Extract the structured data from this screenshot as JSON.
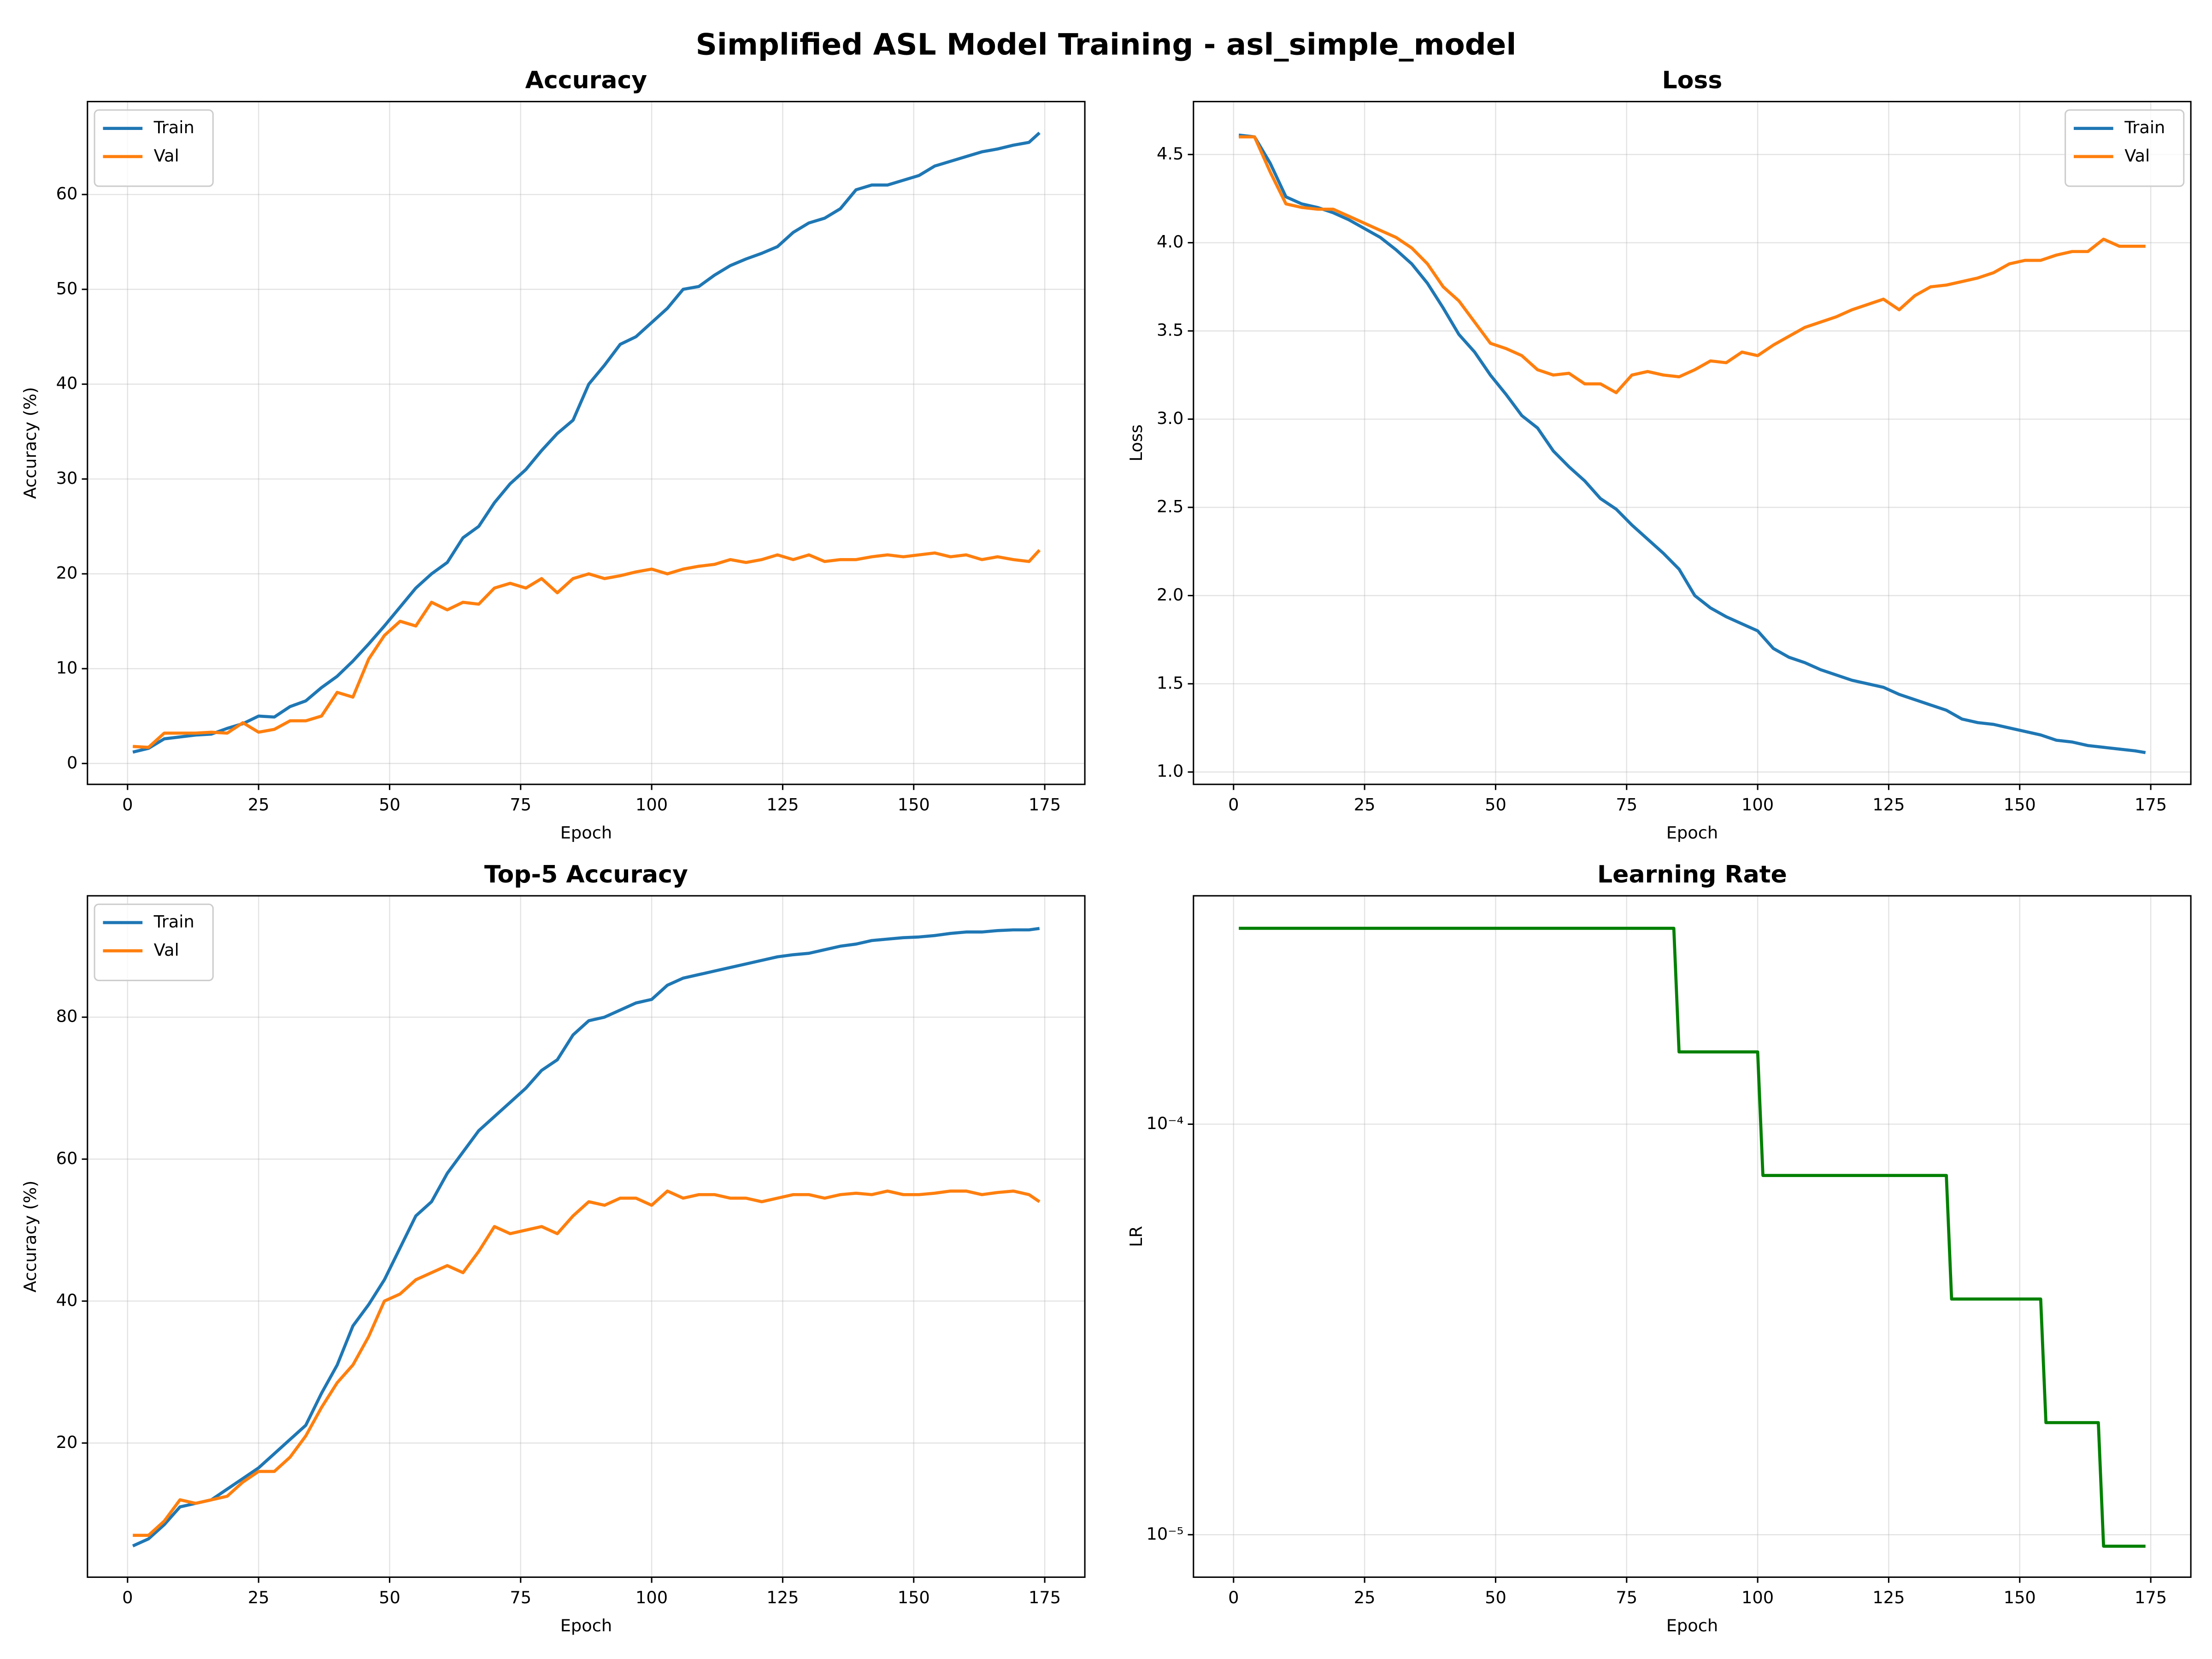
{
  "title": "Simplified ASL Model Training - asl_simple_model",
  "chart_data": [
    {
      "type": "line",
      "title": "Accuracy",
      "x_label": "Epoch",
      "y_label": "Accuracy (%)",
      "x": [
        1,
        4,
        7,
        10,
        13,
        16,
        19,
        22,
        25,
        28,
        31,
        34,
        37,
        40,
        43,
        46,
        49,
        52,
        55,
        58,
        61,
        64,
        67,
        70,
        73,
        76,
        79,
        82,
        85,
        88,
        91,
        94,
        97,
        100,
        103,
        106,
        109,
        112,
        115,
        118,
        121,
        124,
        127,
        130,
        133,
        136,
        139,
        142,
        145,
        148,
        151,
        154,
        157,
        160,
        163,
        166,
        169,
        172,
        174
      ],
      "series": [
        {
          "name": "Train",
          "color": "#1f77b4",
          "values": [
            1.2,
            1.6,
            2.6,
            2.8,
            3.0,
            3.1,
            3.7,
            4.2,
            5.0,
            4.9,
            6.0,
            6.6,
            8.0,
            9.2,
            10.8,
            12.6,
            14.5,
            16.5,
            18.5,
            20.0,
            21.2,
            23.8,
            25.0,
            27.5,
            29.5,
            31.0,
            33.0,
            34.8,
            36.2,
            40.0,
            42.0,
            44.2,
            45.0,
            46.5,
            48.0,
            50.0,
            50.3,
            51.5,
            52.5,
            53.2,
            53.8,
            54.5,
            56.0,
            57.0,
            57.5,
            58.5,
            60.5,
            61.0,
            61.0,
            61.5,
            62.0,
            63.0,
            63.5,
            64.0,
            64.5,
            64.8,
            65.2,
            65.5,
            66.5
          ]
        },
        {
          "name": "Val",
          "color": "#ff7f0e",
          "values": [
            1.8,
            1.7,
            3.2,
            3.2,
            3.2,
            3.3,
            3.2,
            4.3,
            3.3,
            3.6,
            4.5,
            4.5,
            5.0,
            7.5,
            7.0,
            11.0,
            13.5,
            15.0,
            14.5,
            17.0,
            16.2,
            17.0,
            16.8,
            18.5,
            19.0,
            18.5,
            19.5,
            18.0,
            19.5,
            20.0,
            19.5,
            19.8,
            20.2,
            20.5,
            20.0,
            20.5,
            20.8,
            21.0,
            21.5,
            21.2,
            21.5,
            22.0,
            21.5,
            22.0,
            21.3,
            21.5,
            21.5,
            21.8,
            22.0,
            21.8,
            22.0,
            22.2,
            21.8,
            22.0,
            21.5,
            21.8,
            21.5,
            21.3,
            22.5
          ]
        }
      ],
      "xlim": [
        -7.65,
        182.65
      ],
      "ylim": [
        -2.2,
        69.8
      ],
      "xticks": [
        0,
        25,
        50,
        75,
        100,
        125,
        150,
        175
      ],
      "yticks": [
        0,
        10,
        20,
        30,
        40,
        50,
        60
      ],
      "grid": true,
      "legend": "upper left"
    },
    {
      "type": "line",
      "title": "Loss",
      "x_label": "Epoch",
      "y_label": "Loss",
      "x": [
        1,
        4,
        7,
        10,
        13,
        16,
        19,
        22,
        25,
        28,
        31,
        34,
        37,
        40,
        43,
        46,
        49,
        52,
        55,
        58,
        61,
        64,
        67,
        70,
        73,
        76,
        79,
        82,
        85,
        88,
        91,
        94,
        97,
        100,
        103,
        106,
        109,
        112,
        115,
        118,
        121,
        124,
        127,
        130,
        133,
        136,
        139,
        142,
        145,
        148,
        151,
        154,
        157,
        160,
        163,
        166,
        169,
        172,
        174
      ],
      "series": [
        {
          "name": "Train",
          "color": "#1f77b4",
          "values": [
            4.61,
            4.6,
            4.45,
            4.26,
            4.22,
            4.2,
            4.17,
            4.13,
            4.08,
            4.03,
            3.96,
            3.88,
            3.77,
            3.63,
            3.48,
            3.38,
            3.25,
            3.14,
            3.02,
            2.95,
            2.82,
            2.73,
            2.65,
            2.55,
            2.49,
            2.4,
            2.32,
            2.24,
            2.15,
            2.0,
            1.93,
            1.88,
            1.84,
            1.8,
            1.7,
            1.65,
            1.62,
            1.58,
            1.55,
            1.52,
            1.5,
            1.48,
            1.44,
            1.41,
            1.38,
            1.35,
            1.3,
            1.28,
            1.27,
            1.25,
            1.23,
            1.21,
            1.18,
            1.17,
            1.15,
            1.14,
            1.13,
            1.12,
            1.11
          ]
        },
        {
          "name": "Val",
          "color": "#ff7f0e",
          "values": [
            4.6,
            4.6,
            4.4,
            4.22,
            4.2,
            4.19,
            4.19,
            4.15,
            4.11,
            4.07,
            4.03,
            3.97,
            3.88,
            3.75,
            3.67,
            3.55,
            3.43,
            3.4,
            3.36,
            3.28,
            3.25,
            3.26,
            3.2,
            3.2,
            3.15,
            3.25,
            3.27,
            3.25,
            3.24,
            3.28,
            3.33,
            3.32,
            3.38,
            3.36,
            3.42,
            3.47,
            3.52,
            3.55,
            3.58,
            3.62,
            3.65,
            3.68,
            3.62,
            3.7,
            3.75,
            3.76,
            3.78,
            3.8,
            3.83,
            3.88,
            3.9,
            3.9,
            3.93,
            3.95,
            3.95,
            4.02,
            3.98,
            3.98,
            3.98
          ]
        }
      ],
      "xlim": [
        -7.65,
        182.65
      ],
      "ylim": [
        0.93,
        4.8
      ],
      "xticks": [
        0,
        25,
        50,
        75,
        100,
        125,
        150,
        175
      ],
      "yticks": [
        {
          "value": 1,
          "label": "1.0"
        },
        1.5,
        {
          "value": 2,
          "label": "2.0"
        },
        2.5,
        {
          "value": 3,
          "label": "3.0"
        },
        3.5,
        {
          "value": 4,
          "label": "4.0"
        },
        4.5
      ],
      "grid": true,
      "legend": "upper right"
    },
    {
      "type": "line",
      "title": "Top-5 Accuracy",
      "x_label": "Epoch",
      "y_label": "Accuracy (%)",
      "x": [
        1,
        4,
        7,
        10,
        13,
        16,
        19,
        22,
        25,
        28,
        31,
        34,
        37,
        40,
        43,
        46,
        49,
        52,
        55,
        58,
        61,
        64,
        67,
        70,
        73,
        76,
        79,
        82,
        85,
        88,
        91,
        94,
        97,
        100,
        103,
        106,
        109,
        112,
        115,
        118,
        121,
        124,
        127,
        130,
        133,
        136,
        139,
        142,
        145,
        148,
        151,
        154,
        157,
        160,
        163,
        166,
        169,
        172,
        174
      ],
      "series": [
        {
          "name": "Train",
          "color": "#1f77b4",
          "values": [
            5.5,
            6.5,
            8.5,
            11,
            11.5,
            12.0,
            13.5,
            15.0,
            16.5,
            18.5,
            20.5,
            22.5,
            27.0,
            31.0,
            36.5,
            39.5,
            43.0,
            47.5,
            52.0,
            54.0,
            58.0,
            61.0,
            64.0,
            66.0,
            68.0,
            70.0,
            72.5,
            74.0,
            77.5,
            79.5,
            80.0,
            81.0,
            82.0,
            82.5,
            84.5,
            85.5,
            86.0,
            86.5,
            87.0,
            87.5,
            88.0,
            88.5,
            88.8,
            89.0,
            89.5,
            90.0,
            90.3,
            90.8,
            91.0,
            91.2,
            91.3,
            91.5,
            91.8,
            92.0,
            92.0,
            92.2,
            92.3,
            92.3,
            92.5
          ]
        },
        {
          "name": "Val",
          "color": "#ff7f0e",
          "values": [
            7.0,
            7.0,
            9.0,
            12.0,
            11.5,
            12.0,
            12.5,
            14.5,
            16.0,
            16.0,
            18.0,
            21.0,
            25.0,
            28.5,
            31.0,
            35.0,
            40.0,
            41.0,
            43.0,
            44.0,
            45.0,
            44.0,
            47.0,
            50.5,
            49.5,
            50.0,
            50.5,
            49.5,
            52.0,
            54.0,
            53.5,
            54.5,
            54.5,
            53.5,
            55.5,
            54.5,
            55.0,
            55.0,
            54.5,
            54.5,
            54.0,
            54.5,
            55.0,
            55.0,
            54.5,
            55.0,
            55.2,
            55.0,
            55.5,
            55.0,
            55.0,
            55.2,
            55.5,
            55.5,
            55.0,
            55.3,
            55.5,
            55.0,
            54.0
          ]
        }
      ],
      "xlim": [
        -7.65,
        182.65
      ],
      "ylim": [
        1.1,
        97.1
      ],
      "xticks": [
        0,
        25,
        50,
        75,
        100,
        125,
        150,
        175
      ],
      "yticks": [
        20,
        40,
        60,
        80
      ],
      "grid": true,
      "legend": "upper left"
    },
    {
      "type": "line",
      "title": "Learning Rate",
      "x_label": "Epoch",
      "y_label": "LR",
      "x": [
        1,
        84,
        85,
        100,
        101,
        136,
        137,
        154,
        155,
        165,
        166,
        174
      ],
      "series": [
        {
          "name": "LR",
          "color": "#008000",
          "values": [
            0.0003,
            0.0003,
            0.00015,
            0.00015,
            7.5e-05,
            7.5e-05,
            3.75e-05,
            3.75e-05,
            1.875e-05,
            1.875e-05,
            9.375e-06,
            9.375e-06
          ]
        }
      ],
      "xlim": [
        -7.65,
        182.65
      ],
      "ylim": [
        7.88e-06,
        0.00036
      ],
      "log_y": true,
      "xticks": [
        0,
        25,
        50,
        75,
        100,
        125,
        150,
        175
      ],
      "yticks": [
        {
          "value": 1e-05,
          "label": "10⁻⁵"
        },
        {
          "value": 0.0001,
          "label": "10⁻⁴"
        }
      ],
      "grid": true
    }
  ]
}
